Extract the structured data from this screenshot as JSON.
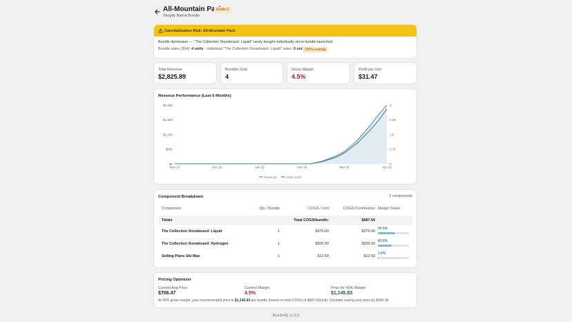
{
  "header": {
    "back_icon": "arrow-left-icon",
    "title": "All-Mountain Pack",
    "grade": "Grade C",
    "subtitle": "Shopify Native Bundle"
  },
  "alert": {
    "title": "Cannibalization Risk: All-Mountain Pack",
    "line1": "Bundle dominates — \"The Collection Snowboard: Liquid\" rarely bought individually since bundle launched.",
    "sales_prefix": "Bundle sales (30d):",
    "bundle_units": "4 units",
    "individual_prefix": "· Individual \"The Collection Snowboard: Liquid\" sales:",
    "individual_units": "0 units",
    "badge": "100% overlap",
    "colors": {
      "banner": "#f5c316",
      "badge_bg": "#fde6c3"
    }
  },
  "metrics": [
    {
      "label": "Total Revenue",
      "value": "$2,825.89"
    },
    {
      "label": "Bundles Sold",
      "value": "4"
    },
    {
      "label": "Gross Margin",
      "value": "4.5%"
    },
    {
      "label": "Profit per Unit",
      "value": "$31.47"
    }
  ],
  "revenue_card": {
    "title": "Revenue Performance (Last 6 Months)"
  },
  "chart_data": {
    "type": "area",
    "title": "Revenue Performance (Last 6 Months)",
    "x_ticks": [
      "Nov 25",
      "Dec 25",
      "Jan 26",
      "Feb 26",
      "Mar 26",
      "Apr 26"
    ],
    "y_left_ticks": [
      "$0",
      "$600",
      "$1,200",
      "$1,800",
      "$2,400"
    ],
    "y_left_range": [
      0,
      2400
    ],
    "y_right_ticks": [
      "0",
      "0.75",
      "1.5",
      "2.25",
      "3"
    ],
    "y_right_range": [
      0,
      3
    ],
    "series": [
      {
        "name": "Revenue",
        "axis": "left",
        "color": "#5b8db8",
        "points": [
          [
            0,
            0
          ],
          [
            1,
            0
          ],
          [
            2,
            0
          ],
          [
            3,
            0
          ],
          [
            3.2,
            0
          ],
          [
            3.5,
            120
          ],
          [
            3.8,
            320
          ],
          [
            4,
            500
          ],
          [
            4.3,
            950
          ],
          [
            4.6,
            1550
          ],
          [
            4.8,
            2000
          ],
          [
            5,
            2400
          ]
        ]
      },
      {
        "name": "Units Sold",
        "axis": "right",
        "color": "#4f7f73",
        "points": [
          [
            0,
            0
          ],
          [
            1,
            0
          ],
          [
            2,
            0
          ],
          [
            3,
            0
          ],
          [
            3.2,
            0
          ],
          [
            3.5,
            0.12
          ],
          [
            3.8,
            0.33
          ],
          [
            4,
            0.55
          ],
          [
            4.3,
            1.05
          ],
          [
            4.6,
            1.7
          ],
          [
            4.8,
            2.2
          ],
          [
            5,
            2.8
          ]
        ]
      }
    ],
    "legend": [
      "Revenue",
      "Units Sold"
    ],
    "legend_position": "bottom",
    "grid": false
  },
  "components": {
    "title": "Component Breakdown",
    "count": "3 components",
    "headers": [
      "Component",
      "Qty / Bundle",
      "COGS / Unit",
      "COGS Contribution",
      "Margin Share"
    ],
    "totals_label": "Totals",
    "totals_cogs_label": "Total COGS/bundle:",
    "totals_value": "$687.50",
    "rows": [
      {
        "name": "The Collection Snowboard: Liquid",
        "qty": "1",
        "cogs": "$375.00",
        "contribution": "$375.00",
        "share": "54.5%",
        "share_value": 54.5
      },
      {
        "name": "The Collection Snowboard: Hydrogen",
        "qty": "1",
        "cogs": "$300.00",
        "contribution": "$300.00",
        "share": "43.6%",
        "share_value": 43.6
      },
      {
        "name": "Selling Plans Ski Wax",
        "qty": "1",
        "cogs": "$12.50",
        "contribution": "$12.50",
        "share": "1.8%",
        "share_value": 1.8
      }
    ]
  },
  "pricing": {
    "title": "Pricing Optimizer",
    "items": [
      {
        "label": "Current Avg Price",
        "value": "$706.47"
      },
      {
        "label": "Current Margin",
        "value": "4.5%"
      },
      {
        "label": "Price for 40% Margin",
        "value": "$1,145.83"
      }
    ],
    "note_a": "At 40% gross margin, your recommended price is",
    "note_price": "$1,145.83",
    "note_b": "per bundle (based on total COGS of $687.50/unit). Consider raising your price by $439.36."
  },
  "footer": {
    "version": "BundleIQ v1.0.2"
  }
}
